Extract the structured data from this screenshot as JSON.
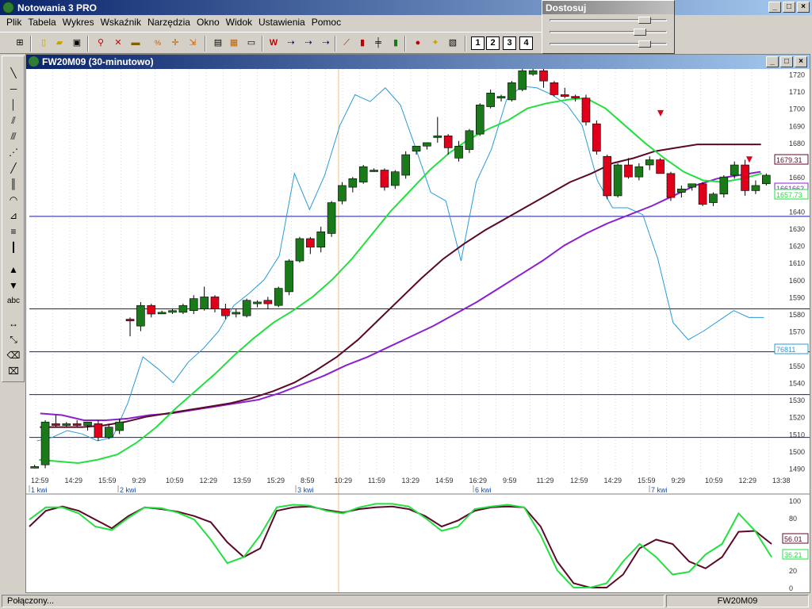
{
  "app": {
    "title": "Notowania 3 PRO"
  },
  "menu": [
    "Plik",
    "Tabela",
    "Wykres",
    "Wskaźnik",
    "Narzędzia",
    "Okno",
    "Widok",
    "Ustawienia",
    "Pomoc"
  ],
  "toolbar_numbers": [
    "1",
    "2",
    "3",
    "4"
  ],
  "dostosuj": {
    "title": "Dostosuj",
    "sliders": [
      0.85,
      0.8,
      0.85
    ]
  },
  "chart_window": {
    "title": "FW20M09 (30-minutowo)"
  },
  "status": {
    "left": "Połączony...",
    "right": "FW20M09"
  },
  "colors": {
    "up": "#1a7a1a",
    "down": "#e0001b",
    "ma_fast": "#22e040",
    "ma_mid": "#5a0a28",
    "ma_slow": "#8a20d0",
    "osc": "#2a9ad8",
    "hline": "#1a1a9a"
  },
  "chart_data": [
    {
      "type": "candlestick",
      "y_ticks": [
        "1720",
        "1710",
        "1700",
        "1690",
        "1680",
        "1670",
        "1660",
        "1650",
        "1640",
        "1630",
        "1620",
        "1610",
        "1600",
        "1590",
        "1580",
        "1570",
        "1560",
        "1550",
        "1540",
        "1530",
        "1520",
        "1510",
        "1500",
        "1490"
      ],
      "ylim": [
        1487,
        1723
      ],
      "x_time_labels": [
        "12:59",
        "14:29",
        "15:59",
        "9:29",
        "10:59",
        "12:29",
        "13:59",
        "15:29",
        "8:59",
        "10:29",
        "11:59",
        "13:29",
        "14:59",
        "16:29",
        "9:59",
        "11:29",
        "12:59",
        "14:29",
        "15:59",
        "9:29",
        "10:59",
        "12:29",
        "13:38"
      ],
      "date_labels": [
        "1 kwi",
        "2 kwi",
        "3 kwi",
        "6 kwi",
        "7 kwi"
      ],
      "price_labels": [
        {
          "text": "1679.31",
          "color": "#5a0a28"
        },
        {
          "text": "1661662",
          "color": "#8a20d0"
        },
        {
          "text": "1657.73",
          "color": "#22e040"
        },
        {
          "text": "76811",
          "color": "#2a9ad8"
        }
      ],
      "horizontal_levels": [
        1637,
        1583,
        1558,
        1533,
        1508
      ],
      "candles": [
        {
          "o": 1491,
          "h": 1492,
          "l": 1490,
          "c": 1491
        },
        {
          "o": 1492,
          "h": 1518,
          "l": 1490,
          "c": 1517
        },
        {
          "o": 1516,
          "h": 1521,
          "l": 1514,
          "c": 1515
        },
        {
          "o": 1515,
          "h": 1517,
          "l": 1514,
          "c": 1516
        },
        {
          "o": 1516,
          "h": 1518,
          "l": 1514,
          "c": 1515
        },
        {
          "o": 1515,
          "h": 1517,
          "l": 1512,
          "c": 1517
        },
        {
          "o": 1516,
          "h": 1518,
          "l": 1506,
          "c": 1508
        },
        {
          "o": 1508,
          "h": 1516,
          "l": 1507,
          "c": 1514
        },
        {
          "o": 1512,
          "h": 1519,
          "l": 1510,
          "c": 1517
        },
        {
          "o": 1577,
          "h": 1578,
          "l": 1567,
          "c": 1576
        },
        {
          "o": 1573,
          "h": 1587,
          "l": 1570,
          "c": 1585
        },
        {
          "o": 1585,
          "h": 1586,
          "l": 1578,
          "c": 1580
        },
        {
          "o": 1581,
          "h": 1582,
          "l": 1580,
          "c": 1581
        },
        {
          "o": 1581,
          "h": 1583,
          "l": 1580,
          "c": 1582
        },
        {
          "o": 1581,
          "h": 1586,
          "l": 1580,
          "c": 1585
        },
        {
          "o": 1582,
          "h": 1591,
          "l": 1580,
          "c": 1589
        },
        {
          "o": 1583,
          "h": 1596,
          "l": 1582,
          "c": 1590
        },
        {
          "o": 1590,
          "h": 1591,
          "l": 1581,
          "c": 1583
        },
        {
          "o": 1583,
          "h": 1586,
          "l": 1577,
          "c": 1579
        },
        {
          "o": 1580,
          "h": 1583,
          "l": 1578,
          "c": 1581
        },
        {
          "o": 1579,
          "h": 1589,
          "l": 1578,
          "c": 1588
        },
        {
          "o": 1586,
          "h": 1588,
          "l": 1584,
          "c": 1587
        },
        {
          "o": 1588,
          "h": 1590,
          "l": 1583,
          "c": 1586
        },
        {
          "o": 1585,
          "h": 1596,
          "l": 1584,
          "c": 1595
        },
        {
          "o": 1593,
          "h": 1612,
          "l": 1591,
          "c": 1611
        },
        {
          "o": 1611,
          "h": 1625,
          "l": 1610,
          "c": 1624
        },
        {
          "o": 1624,
          "h": 1625,
          "l": 1615,
          "c": 1619
        },
        {
          "o": 1619,
          "h": 1631,
          "l": 1616,
          "c": 1628
        },
        {
          "o": 1627,
          "h": 1646,
          "l": 1625,
          "c": 1645
        },
        {
          "o": 1646,
          "h": 1657,
          "l": 1644,
          "c": 1655
        },
        {
          "o": 1654,
          "h": 1660,
          "l": 1651,
          "c": 1659
        },
        {
          "o": 1657,
          "h": 1667,
          "l": 1656,
          "c": 1666
        },
        {
          "o": 1664,
          "h": 1665,
          "l": 1663,
          "c": 1664
        },
        {
          "o": 1664,
          "h": 1665,
          "l": 1652,
          "c": 1654
        },
        {
          "o": 1655,
          "h": 1664,
          "l": 1653,
          "c": 1663
        },
        {
          "o": 1661,
          "h": 1675,
          "l": 1659,
          "c": 1673
        },
        {
          "o": 1675,
          "h": 1678,
          "l": 1673,
          "c": 1678
        },
        {
          "o": 1678,
          "h": 1680,
          "l": 1676,
          "c": 1680
        },
        {
          "o": 1683,
          "h": 1695,
          "l": 1680,
          "c": 1684
        },
        {
          "o": 1684,
          "h": 1685,
          "l": 1673,
          "c": 1677
        },
        {
          "o": 1671,
          "h": 1681,
          "l": 1669,
          "c": 1678
        },
        {
          "o": 1676,
          "h": 1688,
          "l": 1674,
          "c": 1687
        },
        {
          "o": 1685,
          "h": 1703,
          "l": 1684,
          "c": 1702
        },
        {
          "o": 1701,
          "h": 1711,
          "l": 1700,
          "c": 1709
        },
        {
          "o": 1706,
          "h": 1708,
          "l": 1704,
          "c": 1707
        },
        {
          "o": 1705,
          "h": 1716,
          "l": 1704,
          "c": 1715
        },
        {
          "o": 1711,
          "h": 1724,
          "l": 1710,
          "c": 1722
        },
        {
          "o": 1720,
          "h": 1724,
          "l": 1719,
          "c": 1722
        },
        {
          "o": 1722,
          "h": 1723,
          "l": 1712,
          "c": 1716
        },
        {
          "o": 1715,
          "h": 1716,
          "l": 1707,
          "c": 1708
        },
        {
          "o": 1708,
          "h": 1712,
          "l": 1706,
          "c": 1707
        },
        {
          "o": 1707,
          "h": 1708,
          "l": 1704,
          "c": 1706
        },
        {
          "o": 1706,
          "h": 1708,
          "l": 1690,
          "c": 1692
        },
        {
          "o": 1691,
          "h": 1693,
          "l": 1673,
          "c": 1675
        },
        {
          "o": 1672,
          "h": 1673,
          "l": 1647,
          "c": 1649
        },
        {
          "o": 1649,
          "h": 1668,
          "l": 1648,
          "c": 1667
        },
        {
          "o": 1667,
          "h": 1671,
          "l": 1659,
          "c": 1660
        },
        {
          "o": 1660,
          "h": 1668,
          "l": 1658,
          "c": 1666
        },
        {
          "o": 1667,
          "h": 1672,
          "l": 1664,
          "c": 1670
        },
        {
          "o": 1670,
          "h": 1671,
          "l": 1662,
          "c": 1662
        },
        {
          "o": 1662,
          "h": 1663,
          "l": 1646,
          "c": 1648
        },
        {
          "o": 1651,
          "h": 1655,
          "l": 1648,
          "c": 1653
        },
        {
          "o": 1654,
          "h": 1655,
          "l": 1652,
          "c": 1656
        },
        {
          "o": 1656,
          "h": 1657,
          "l": 1643,
          "c": 1644
        },
        {
          "o": 1645,
          "h": 1651,
          "l": 1643,
          "c": 1650
        },
        {
          "o": 1650,
          "h": 1661,
          "l": 1648,
          "c": 1660
        },
        {
          "o": 1661,
          "h": 1669,
          "l": 1659,
          "c": 1667
        },
        {
          "o": 1667,
          "h": 1670,
          "l": 1649,
          "c": 1652
        },
        {
          "o": 1652,
          "h": 1658,
          "l": 1650,
          "c": 1655
        },
        {
          "o": 1656,
          "h": 1662,
          "l": 1655,
          "c": 1661
        }
      ],
      "ma_fast": [
        1495,
        1494,
        1493,
        1495,
        1498,
        1505,
        1514,
        1525,
        1535,
        1545,
        1556,
        1566,
        1575,
        1582,
        1590,
        1600,
        1612,
        1626,
        1640,
        1652,
        1664,
        1674,
        1682,
        1688,
        1693,
        1700,
        1703,
        1705,
        1706,
        1700,
        1690,
        1680,
        1671,
        1663,
        1658,
        1657,
        1659,
        1662
      ],
      "ma_mid": [
        1514,
        1514,
        1514,
        1515,
        1517,
        1520,
        1522,
        1524,
        1526,
        1528,
        1531,
        1535,
        1540,
        1547,
        1555,
        1565,
        1577,
        1589,
        1601,
        1612,
        1621,
        1629,
        1636,
        1643,
        1650,
        1657,
        1662,
        1668,
        1671,
        1675,
        1677,
        1679,
        1679,
        1679,
        1679
      ],
      "ma_slow": [
        1522,
        1521,
        1518,
        1518,
        1519,
        1521,
        1522,
        1524,
        1526,
        1528,
        1530,
        1534,
        1539,
        1544,
        1550,
        1555,
        1561,
        1567,
        1573,
        1580,
        1587,
        1595,
        1603,
        1611,
        1620,
        1627,
        1633,
        1638,
        1643,
        1649,
        1655,
        1659,
        1661,
        1663
      ],
      "osc": [
        1506,
        1508,
        1512,
        1510,
        1506,
        1508,
        1528,
        1555,
        1548,
        1540,
        1552,
        1560,
        1570,
        1585,
        1592,
        1600,
        1614,
        1662,
        1641,
        1661,
        1690,
        1708,
        1704,
        1712,
        1702,
        1677,
        1651,
        1646,
        1611,
        1657,
        1676,
        1705,
        1713,
        1712,
        1708,
        1702,
        1690,
        1658,
        1642,
        1642,
        1638,
        1612,
        1575,
        1565,
        1570,
        1576,
        1582,
        1578,
        1578
      ],
      "signal_arrows": [
        1699,
        1672
      ]
    },
    {
      "type": "line",
      "y_ticks": [
        "100",
        "80",
        "60",
        "40",
        "20",
        "0"
      ],
      "ylim": [
        0,
        100
      ],
      "value_labels": [
        {
          "text": "56.01",
          "color": "#5a0a28"
        },
        {
          "text": "36.21",
          "color": "#22e040"
        }
      ],
      "series": [
        {
          "values": [
            70,
            88,
            93,
            88,
            78,
            68,
            82,
            92,
            90,
            87,
            82,
            75,
            52,
            35,
            45,
            88,
            92,
            93,
            89,
            86,
            90,
            92,
            93,
            90,
            82,
            70,
            77,
            88,
            92,
            93,
            92,
            70,
            30,
            5,
            0,
            0,
            15,
            45,
            55,
            50,
            30,
            22,
            35,
            64,
            65,
            50
          ]
        },
        {
          "values": [
            78,
            92,
            92,
            85,
            70,
            66,
            80,
            92,
            91,
            86,
            78,
            55,
            28,
            35,
            60,
            92,
            95,
            94,
            88,
            85,
            92,
            96,
            96,
            93,
            80,
            65,
            70,
            90,
            93,
            95,
            92,
            60,
            20,
            0,
            0,
            5,
            30,
            50,
            35,
            15,
            18,
            38,
            50,
            85,
            65,
            35
          ]
        }
      ]
    }
  ]
}
